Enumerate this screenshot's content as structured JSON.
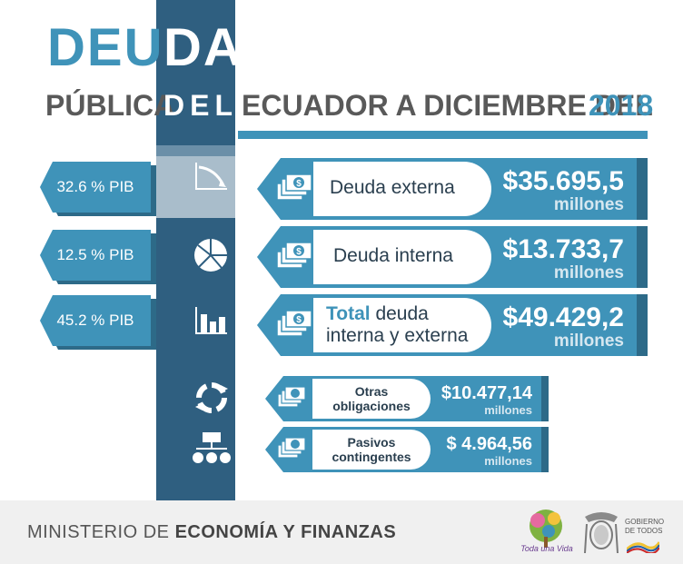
{
  "title": {
    "deu": "DEU",
    "da": "DA",
    "publica": "PÚBLICA",
    "del": "DEL",
    "ecuador": "ECUADOR A DICIEMBRE DEL",
    "year": "2018"
  },
  "pib_tags": [
    "32.6 % PIB",
    "12.5 % PIB",
    "45.2 % PIB"
  ],
  "rows": [
    {
      "label": "Deuda externa",
      "value": "$35.695,5",
      "unit": "millones"
    },
    {
      "label": "Deuda interna",
      "value": "$13.733,7",
      "unit": "millones"
    },
    {
      "label_highlight": "Total",
      "label_rest": " deuda",
      "label_line2": "interna y externa",
      "value": "$49.429,2",
      "unit": "millones"
    }
  ],
  "small_rows": [
    {
      "label_line1": "Otras",
      "label_line2": "obligaciones",
      "value": "$10.477,14",
      "unit": "millones"
    },
    {
      "label_line1": "Pasivos",
      "label_line2": "contingentes",
      "value": "$ 4.964,56",
      "unit": "millones"
    }
  ],
  "footer": {
    "ministry_plain": "MINISTERIO DE ",
    "ministry_bold": "ECONOMÍA Y FINANZAS",
    "logo_toda": "Toda una Vida",
    "gobierno_line1": "GOBIERNO",
    "gobierno_line2": "DE TODOS"
  },
  "colors": {
    "dark_blue": "#2f5f80",
    "accent_blue": "#3f93b9",
    "shadow_blue": "#2d6a88",
    "gray_text": "#595959"
  },
  "icons": [
    "line-chart-icon",
    "pie-chart-icon",
    "bar-chart-icon",
    "recycle-arrows-icon",
    "org-chart-icon",
    "money-bills-icon"
  ]
}
